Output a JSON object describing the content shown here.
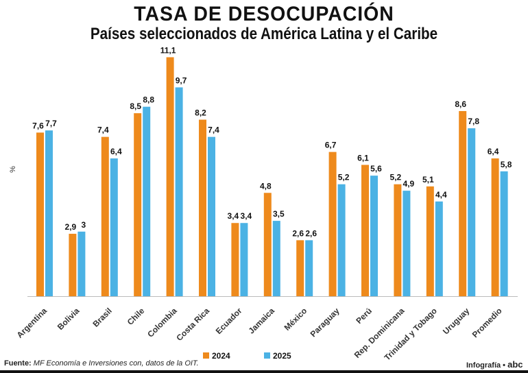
{
  "title": "TASA DE DESOCUPACIÓN",
  "subtitle": "Países seleccionados de América Latina y el Caribe",
  "footer": {
    "source_label": "Fuente:",
    "source_text": "MF Economía e Inversiones con, datos de la OIT.",
    "credit": "Infografía •",
    "logo": "abc"
  },
  "chart_data": {
    "type": "bar",
    "title": "TASA DE DESOCUPACIÓN",
    "subtitle": "Países seleccionados de América Latina y el Caribe",
    "ylabel": "%",
    "xlabel": "",
    "ylim": [
      0,
      11.5
    ],
    "grid": false,
    "legend": "bottom",
    "categories": [
      "Argentina",
      "Bolivia",
      "Brasil",
      "Chile",
      "Colombia",
      "Costa Rica",
      "Ecuador",
      "Jamaica",
      "México",
      "Paraguay",
      "Perú",
      "Rep. Dominicana",
      "Trinidad y Tobago",
      "Uruguay",
      "Promedio"
    ],
    "series": [
      {
        "name": "2024",
        "color": "#EE8A1C",
        "values": [
          7.6,
          2.9,
          7.4,
          8.5,
          11.1,
          8.2,
          3.4,
          4.8,
          2.6,
          6.7,
          6.1,
          5.2,
          5.1,
          8.6,
          6.4
        ],
        "labels": [
          "7,6",
          "2,9",
          "7,4",
          "8,5",
          "11,1",
          "8,2",
          "3,4",
          "4,8",
          "2,6",
          "6,7",
          "6,1",
          "5,2",
          "5,1",
          "8,6",
          "6,4"
        ]
      },
      {
        "name": "2025",
        "color": "#4BB2E4",
        "values": [
          7.7,
          3,
          6.4,
          8.8,
          9.7,
          7.4,
          3.4,
          3.5,
          2.6,
          5.2,
          5.6,
          4.9,
          4.4,
          7.8,
          5.8
        ],
        "labels": [
          "7,7",
          "3",
          "6,4",
          "8,8",
          "9,7",
          "7,4",
          "3,4",
          "3,5",
          "2,6",
          "5,2",
          "5,6",
          "4,9",
          "4,4",
          "7,8",
          "5,8"
        ]
      }
    ]
  }
}
